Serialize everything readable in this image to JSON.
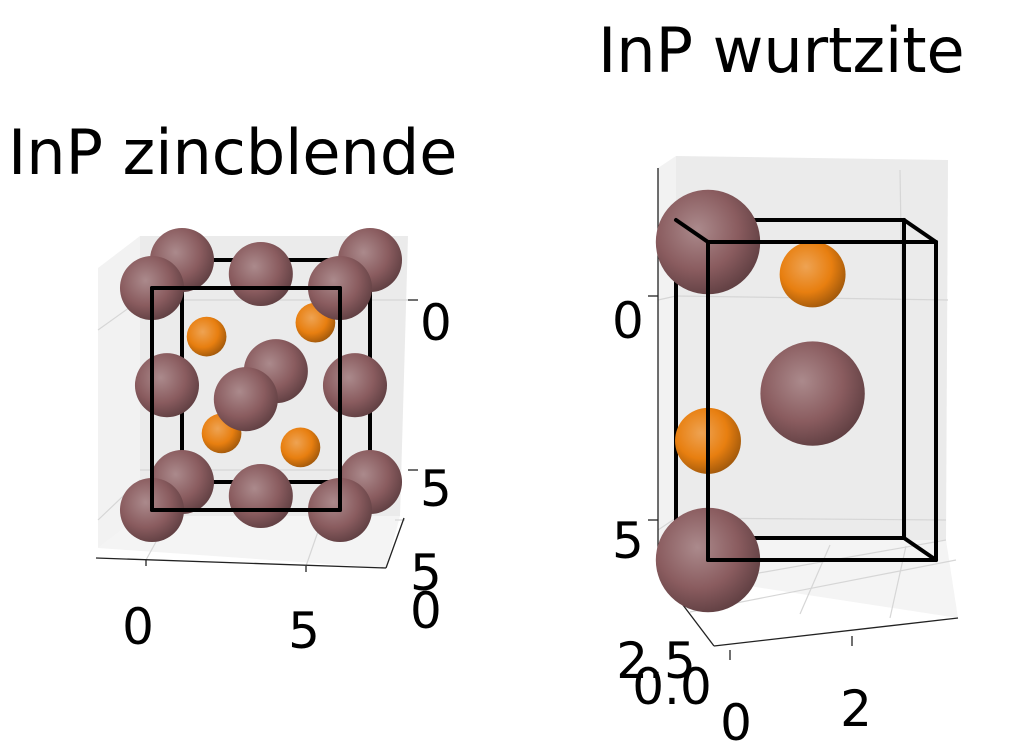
{
  "chart_data": [
    {
      "type": "scatter3d",
      "title": "InP zincblende",
      "x_ticks": [
        "0",
        "5"
      ],
      "y_ticks": [
        "0",
        "5"
      ],
      "z_ticks": [
        "0",
        "5"
      ],
      "colors": {
        "In": "#8a5c5f",
        "P": "#e87f10"
      },
      "atoms": [
        {
          "el": "In",
          "x": 0,
          "y": 5.87,
          "z": 5.87
        },
        {
          "el": "In",
          "x": 5.87,
          "y": 5.87,
          "z": 5.87
        },
        {
          "el": "In",
          "x": 0,
          "y": 0,
          "z": 5.87
        },
        {
          "el": "In",
          "x": 5.87,
          "y": 0,
          "z": 5.87
        },
        {
          "el": "In",
          "x": 2.93,
          "y": 2.93,
          "z": 5.87
        },
        {
          "el": "In",
          "x": 2.93,
          "y": 5.87,
          "z": 2.93
        },
        {
          "el": "In",
          "x": 0,
          "y": 2.93,
          "z": 2.93
        },
        {
          "el": "In",
          "x": 5.87,
          "y": 2.93,
          "z": 2.93
        },
        {
          "el": "In",
          "x": 2.93,
          "y": 0,
          "z": 2.93
        },
        {
          "el": "In",
          "x": 0,
          "y": 5.87,
          "z": 0
        },
        {
          "el": "In",
          "x": 5.87,
          "y": 5.87,
          "z": 0
        },
        {
          "el": "In",
          "x": 0,
          "y": 0,
          "z": 0
        },
        {
          "el": "In",
          "x": 5.87,
          "y": 0,
          "z": 0
        },
        {
          "el": "In",
          "x": 2.93,
          "y": 2.93,
          "z": 0
        },
        {
          "el": "P",
          "x": 1.47,
          "y": 1.47,
          "z": 4.4
        },
        {
          "el": "P",
          "x": 4.4,
          "y": 4.4,
          "z": 4.4
        },
        {
          "el": "P",
          "x": 1.47,
          "y": 4.4,
          "z": 1.47
        },
        {
          "el": "P",
          "x": 4.4,
          "y": 1.47,
          "z": 1.47
        }
      ]
    },
    {
      "type": "scatter3d",
      "title": "InP wurtzite",
      "x_ticks": [
        "0",
        "2"
      ],
      "y_ticks": [
        "0.0",
        "2.5"
      ],
      "z_ticks": [
        "0",
        "5"
      ],
      "colors": {
        "In": "#8a5c5f",
        "P": "#e87f10"
      },
      "atoms": [
        {
          "el": "In",
          "x": 0,
          "y": 0,
          "z": 0
        },
        {
          "el": "In",
          "x": 2.1,
          "y": 1.21,
          "z": 3.43
        },
        {
          "el": "In",
          "x": 0,
          "y": 0,
          "z": 6.86
        },
        {
          "el": "P",
          "x": 0,
          "y": 0,
          "z": 2.57
        },
        {
          "el": "P",
          "x": 2.1,
          "y": 1.21,
          "z": 6.0
        }
      ]
    }
  ]
}
